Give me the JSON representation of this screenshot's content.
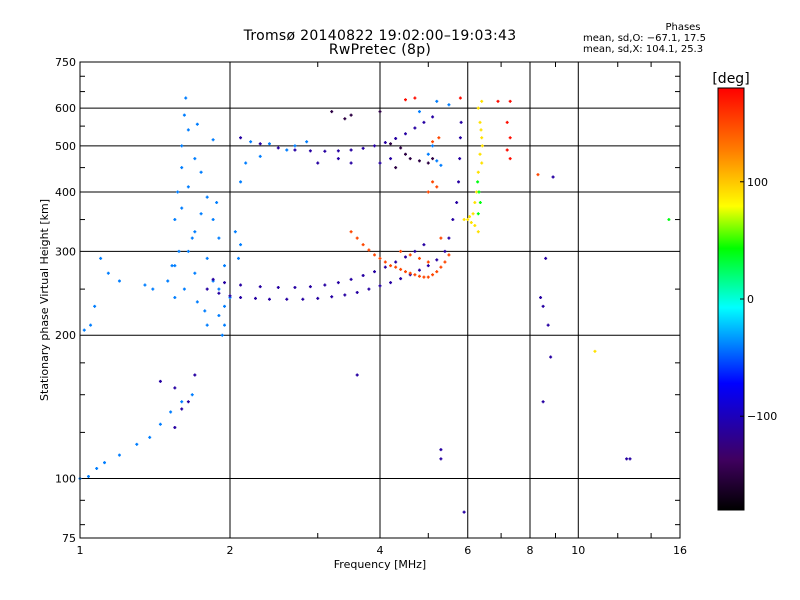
{
  "title_line1": "Tromsø 20140822 19:02:00–19:03:43",
  "title_line2": "RwPretec (8p)",
  "phases": {
    "heading": "Phases",
    "line_o": "mean, sd,O: −67.1, 17.5",
    "line_x": "mean, sd,X: 104.1, 25.3"
  },
  "colors": {
    "grid": "#000000",
    "background": "#ffffff",
    "colormap": [
      "#000000",
      "#400060",
      "#0000ff",
      "#00ffff",
      "#00ff00",
      "#ffff00",
      "#ff8000",
      "#ff0000"
    ]
  },
  "chart_data": {
    "type": "scatter",
    "xlabel": "Frequency [MHz]",
    "ylabel": "Stationary phase Virtual Height [km]",
    "xscale": "log",
    "yscale": "log",
    "xlim": [
      1,
      16
    ],
    "ylim": [
      75,
      750
    ],
    "xticks": [
      1,
      2,
      4,
      6,
      8,
      10,
      16
    ],
    "xtick_labels": [
      "1",
      "2",
      "4",
      "6",
      "8",
      "10",
      "16"
    ],
    "yticks": [
      75,
      100,
      200,
      300,
      400,
      500,
      600,
      750
    ],
    "ytick_labels": [
      "75",
      "100",
      "200",
      "300",
      "400",
      "500",
      "600",
      "750"
    ],
    "grid": true,
    "colorbar": {
      "label": "[deg]",
      "range": [
        -180,
        180
      ],
      "ticks": [
        100,
        0,
        -100
      ],
      "tick_labels": [
        "100",
        "0",
        "−100"
      ]
    },
    "series": [
      {
        "points": [
          [
            1.63,
            630
          ],
          [
            1.62,
            580
          ],
          [
            1.65,
            540
          ],
          [
            1.6,
            500
          ],
          [
            1.7,
            470
          ],
          [
            1.75,
            440
          ],
          [
            1.65,
            410
          ],
          [
            1.8,
            390
          ],
          [
            1.6,
            370
          ],
          [
            1.85,
            350
          ],
          [
            1.7,
            330
          ],
          [
            1.9,
            320
          ],
          [
            1.65,
            300
          ],
          [
            1.8,
            290
          ],
          [
            1.95,
            280
          ],
          [
            1.7,
            270
          ],
          [
            1.85,
            260
          ],
          [
            1.9,
            250
          ],
          [
            2.0,
            240
          ],
          [
            1.95,
            230
          ],
          [
            1.9,
            220
          ],
          [
            1.95,
            210
          ],
          [
            1.93,
            200
          ],
          [
            1.55,
            280
          ],
          [
            1.58,
            300
          ],
          [
            1.55,
            350
          ],
          [
            1.57,
            400
          ],
          [
            1.6,
            450
          ],
          [
            2.05,
            330
          ],
          [
            2.1,
            310
          ],
          [
            2.08,
            290
          ],
          [
            2.1,
            420
          ],
          [
            2.15,
            460
          ],
          [
            2.2,
            510
          ],
          [
            2.4,
            505
          ],
          [
            2.7,
            500
          ],
          [
            2.85,
            510
          ],
          [
            2.6,
            490
          ],
          [
            2.3,
            475
          ],
          [
            1.85,
            515
          ],
          [
            1.72,
            555
          ],
          [
            1.53,
            280
          ],
          [
            1.5,
            260
          ],
          [
            1.55,
            240
          ],
          [
            1.72,
            235
          ],
          [
            1.78,
            225
          ],
          [
            1.8,
            210
          ],
          [
            1.88,
            380
          ],
          [
            1.75,
            360
          ],
          [
            1.68,
            320
          ],
          [
            1.62,
            250
          ],
          [
            1.07,
            230
          ],
          [
            1.05,
            210
          ],
          [
            1.02,
            205
          ],
          [
            1.1,
            290
          ],
          [
            1.14,
            270
          ],
          [
            1.2,
            260
          ],
          [
            1.35,
            255
          ],
          [
            1.4,
            250
          ],
          [
            1.0,
            100
          ],
          [
            1.04,
            101
          ],
          [
            1.08,
            105
          ],
          [
            1.12,
            108
          ],
          [
            1.2,
            112
          ],
          [
            1.3,
            118
          ],
          [
            1.38,
            122
          ],
          [
            1.45,
            130
          ],
          [
            1.52,
            138
          ],
          [
            1.6,
            145
          ],
          [
            1.68,
            150
          ],
          [
            4.8,
            590
          ],
          [
            5.2,
            620
          ],
          [
            5.5,
            610
          ],
          [
            5.1,
            500
          ],
          [
            5.0,
            480
          ],
          [
            5.2,
            465
          ],
          [
            5.3,
            455
          ]
        ],
        "value": -40
      },
      {
        "points": [
          [
            1.8,
            250
          ],
          [
            1.9,
            245
          ],
          [
            2.0,
            242
          ],
          [
            2.1,
            240
          ],
          [
            2.25,
            239
          ],
          [
            2.4,
            238
          ],
          [
            2.6,
            238
          ],
          [
            2.8,
            238
          ],
          [
            3.0,
            239
          ],
          [
            3.2,
            241
          ],
          [
            3.4,
            243
          ],
          [
            3.6,
            246
          ],
          [
            3.8,
            250
          ],
          [
            4.0,
            254
          ],
          [
            4.2,
            258
          ],
          [
            4.4,
            263
          ],
          [
            4.6,
            268
          ],
          [
            4.8,
            274
          ],
          [
            5.0,
            280
          ],
          [
            5.2,
            288
          ],
          [
            5.4,
            300
          ],
          [
            5.5,
            320
          ],
          [
            5.6,
            350
          ],
          [
            5.7,
            380
          ],
          [
            5.75,
            420
          ],
          [
            5.78,
            470
          ],
          [
            5.8,
            520
          ],
          [
            5.82,
            560
          ],
          [
            1.85,
            262
          ],
          [
            1.95,
            258
          ],
          [
            2.1,
            255
          ],
          [
            2.3,
            253
          ],
          [
            2.5,
            252
          ],
          [
            2.7,
            252
          ],
          [
            2.9,
            253
          ],
          [
            3.1,
            255
          ],
          [
            3.3,
            258
          ],
          [
            3.5,
            262
          ],
          [
            3.7,
            267
          ],
          [
            3.9,
            272
          ],
          [
            4.1,
            278
          ],
          [
            4.3,
            285
          ],
          [
            4.5,
            292
          ],
          [
            4.7,
            300
          ],
          [
            4.9,
            310
          ],
          [
            2.1,
            520
          ],
          [
            2.3,
            505
          ],
          [
            2.5,
            495
          ],
          [
            2.7,
            490
          ],
          [
            2.9,
            488
          ],
          [
            3.1,
            487
          ],
          [
            3.3,
            488
          ],
          [
            3.5,
            490
          ],
          [
            3.7,
            494
          ],
          [
            3.9,
            500
          ],
          [
            4.1,
            508
          ],
          [
            4.3,
            518
          ],
          [
            4.5,
            530
          ],
          [
            4.7,
            545
          ],
          [
            4.9,
            560
          ],
          [
            5.1,
            575
          ],
          [
            3.0,
            460
          ],
          [
            3.3,
            470
          ],
          [
            3.5,
            460
          ],
          [
            4.0,
            460
          ],
          [
            4.2,
            470
          ],
          [
            1.45,
            160
          ],
          [
            1.55,
            155
          ],
          [
            1.6,
            140
          ],
          [
            1.65,
            145
          ],
          [
            1.7,
            165
          ],
          [
            1.55,
            128
          ],
          [
            8.6,
            290
          ],
          [
            8.4,
            240
          ],
          [
            8.5,
            230
          ],
          [
            8.7,
            210
          ],
          [
            8.8,
            180
          ],
          [
            8.9,
            430
          ],
          [
            3.6,
            165
          ],
          [
            5.3,
            115
          ],
          [
            5.3,
            110
          ],
          [
            12.5,
            110
          ],
          [
            12.7,
            110
          ],
          [
            5.9,
            85
          ],
          [
            8.5,
            145
          ]
        ],
        "value": -110
      },
      {
        "points": [
          [
            3.4,
            570
          ],
          [
            3.5,
            580
          ],
          [
            4.2,
            505
          ],
          [
            4.4,
            495
          ],
          [
            4.5,
            480
          ],
          [
            4.6,
            470
          ],
          [
            4.8,
            465
          ],
          [
            5.0,
            460
          ],
          [
            5.1,
            470
          ],
          [
            4.3,
            450
          ],
          [
            3.2,
            590
          ],
          [
            4.0,
            590
          ]
        ],
        "value": -150
      },
      {
        "points": [
          [
            3.5,
            330
          ],
          [
            3.6,
            320
          ],
          [
            3.7,
            310
          ],
          [
            3.8,
            302
          ],
          [
            3.9,
            295
          ],
          [
            4.0,
            290
          ],
          [
            4.1,
            285
          ],
          [
            4.2,
            280
          ],
          [
            4.3,
            278
          ],
          [
            4.4,
            275
          ],
          [
            4.5,
            272
          ],
          [
            4.6,
            270
          ],
          [
            4.7,
            268
          ],
          [
            4.8,
            266
          ],
          [
            4.9,
            265
          ],
          [
            5.0,
            265
          ],
          [
            5.1,
            268
          ],
          [
            5.2,
            272
          ],
          [
            5.3,
            278
          ],
          [
            5.4,
            285
          ],
          [
            5.5,
            295
          ],
          [
            4.4,
            300
          ],
          [
            4.6,
            295
          ],
          [
            4.8,
            290
          ],
          [
            5.0,
            285
          ],
          [
            5.3,
            320
          ],
          [
            5.0,
            400
          ],
          [
            5.1,
            420
          ],
          [
            5.2,
            410
          ],
          [
            5.1,
            510
          ],
          [
            5.25,
            520
          ],
          [
            8.3,
            435
          ]
        ],
        "value": 150
      },
      {
        "points": [
          [
            6.3,
            600
          ],
          [
            6.35,
            560
          ],
          [
            6.4,
            520
          ],
          [
            6.35,
            480
          ],
          [
            6.3,
            440
          ],
          [
            6.25,
            400
          ],
          [
            6.2,
            380
          ],
          [
            6.15,
            360
          ],
          [
            6.1,
            345
          ],
          [
            6.2,
            340
          ],
          [
            6.3,
            330
          ],
          [
            6.05,
            355
          ],
          [
            6.0,
            350
          ],
          [
            6.4,
            460
          ],
          [
            6.42,
            500
          ],
          [
            6.38,
            540
          ],
          [
            5.9,
            350
          ],
          [
            6.4,
            620
          ],
          [
            10.8,
            185
          ]
        ],
        "value": 90
      },
      {
        "points": [
          [
            6.28,
            420
          ],
          [
            6.32,
            400
          ],
          [
            6.36,
            380
          ],
          [
            6.3,
            360
          ],
          [
            15.2,
            350
          ]
        ],
        "value": 40
      },
      {
        "points": [
          [
            7.3,
            620
          ],
          [
            7.2,
            560
          ],
          [
            7.3,
            520
          ],
          [
            7.2,
            490
          ],
          [
            7.3,
            470
          ],
          [
            6.9,
            620
          ],
          [
            5.8,
            630
          ],
          [
            4.5,
            625
          ],
          [
            4.7,
            630
          ]
        ],
        "value": 175
      }
    ]
  }
}
